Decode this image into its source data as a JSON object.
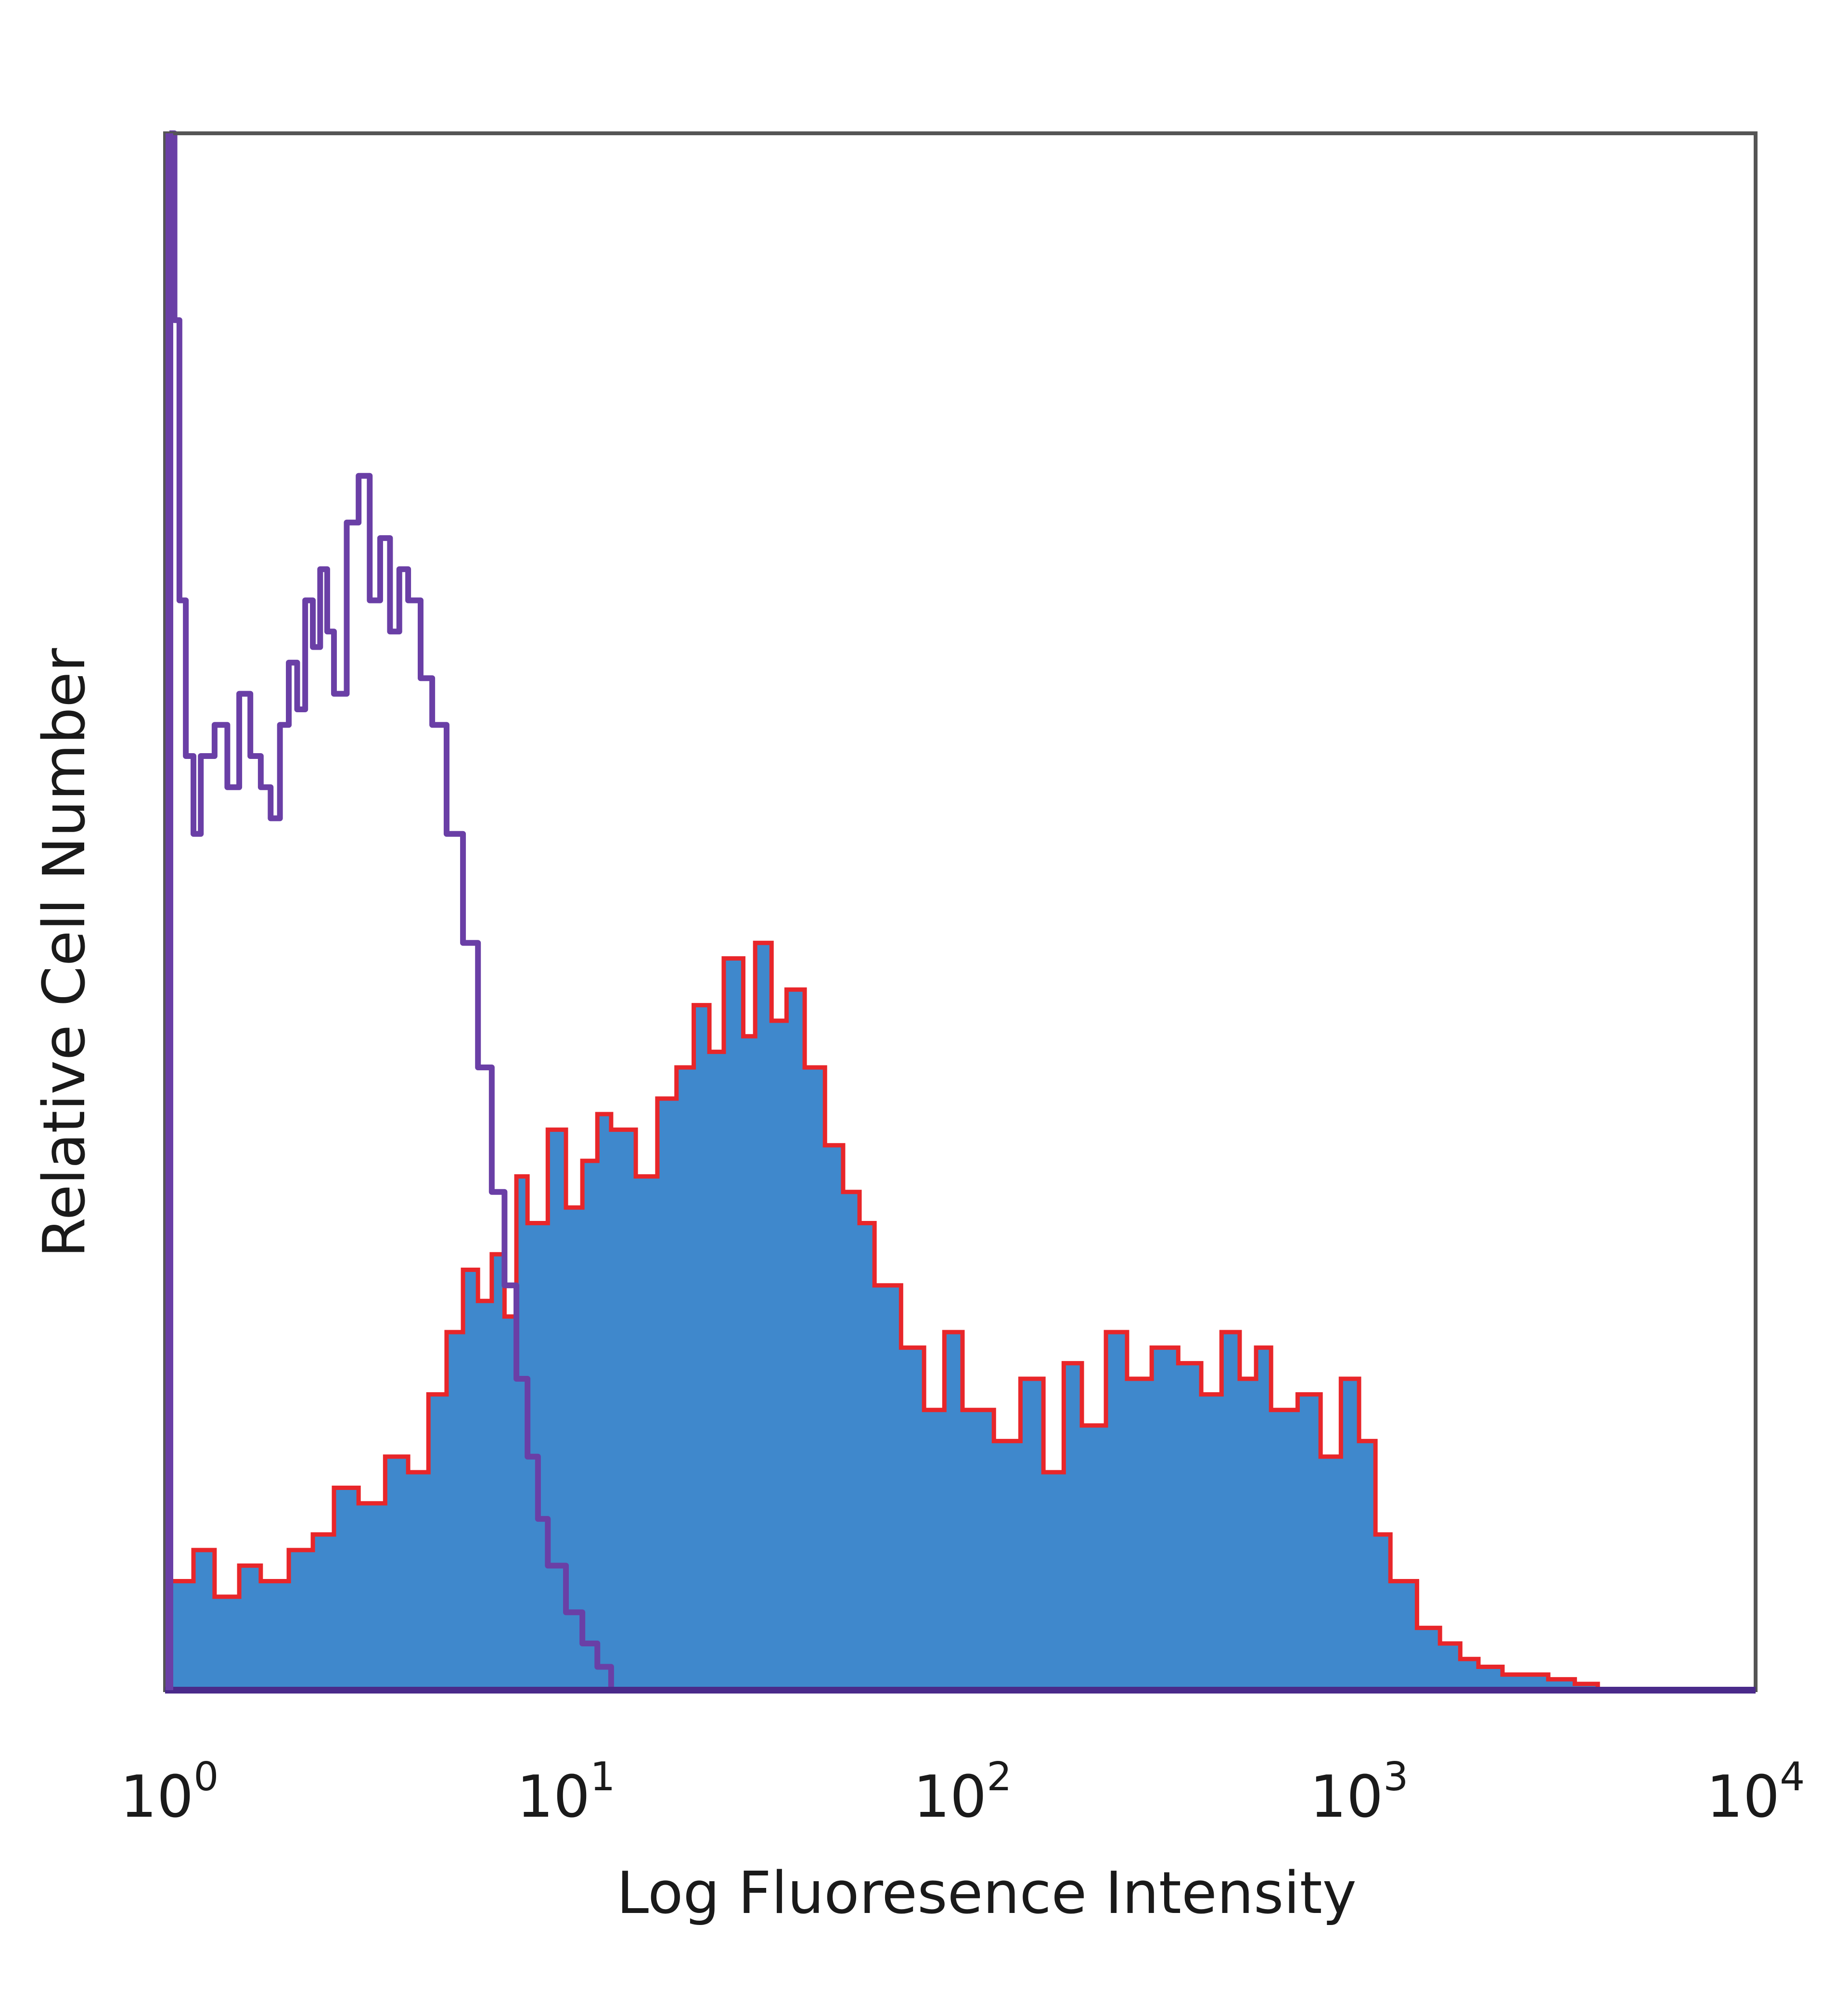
{
  "chart_data": {
    "type": "area",
    "title": "",
    "xlabel": "Log Fluoresence Intensity",
    "ylabel": "Relative Cell Number",
    "x_scale": "log",
    "xlim": [
      1,
      10000
    ],
    "ylim": [
      0,
      100
    ],
    "y_ticks_shown": false,
    "grid": false,
    "legend": "none",
    "x_ticks": [
      {
        "value": 1,
        "base": "10",
        "exp": "0"
      },
      {
        "value": 10,
        "base": "10",
        "exp": "1"
      },
      {
        "value": 100,
        "base": "10",
        "exp": "2"
      },
      {
        "value": 1000,
        "base": "10",
        "exp": "3"
      },
      {
        "value": 10000,
        "base": "10",
        "exp": "4"
      }
    ],
    "colors": {
      "filled_histogram_fill": "#3f88cc",
      "filled_histogram_outline": "#e8262a",
      "open_histogram_line": "#6a3fa6",
      "frame": "#555555",
      "baseline": "#4a2a8a"
    },
    "series": [
      {
        "style": "filled",
        "note_color": "blue fill with red outline",
        "x": [
          1.0,
          1.15,
          1.3,
          1.5,
          1.7,
          2.0,
          2.3,
          2.6,
          3.0,
          3.5,
          4.0,
          4.5,
          5.0,
          5.5,
          6.0,
          6.5,
          7.0,
          7.5,
          8.0,
          9.0,
          10.0,
          11.0,
          12.0,
          13.0,
          15.0,
          17.0,
          19.0,
          21.0,
          23.0,
          25.0,
          28.0,
          30.0,
          33.0,
          36.0,
          40.0,
          45.0,
          50.0,
          55.0,
          60.0,
          70.0,
          80.0,
          90.0,
          100.0,
          120.0,
          140.0,
          160.0,
          180.0,
          200.0,
          230.0,
          260.0,
          300.0,
          350.0,
          400.0,
          450.0,
          500.0,
          550.0,
          600.0,
          700.0,
          800.0,
          900.0,
          1000.0,
          1100.0,
          1200.0,
          1400.0,
          1600.0,
          1800.0,
          2000.0,
          2300.0,
          2600.0,
          3000.0,
          3500.0,
          4000.0
        ],
        "y": [
          7,
          9,
          6,
          8,
          7,
          9,
          10,
          13,
          12,
          15,
          14,
          19,
          23,
          27,
          25,
          28,
          24,
          33,
          30,
          36,
          31,
          34,
          37,
          36,
          33,
          38,
          40,
          44,
          41,
          47,
          42,
          48,
          43,
          45,
          40,
          35,
          32,
          30,
          26,
          22,
          18,
          23,
          18,
          16,
          20,
          14,
          21,
          17,
          23,
          20,
          22,
          21,
          19,
          23,
          20,
          22,
          18,
          19,
          15,
          20,
          16,
          10,
          7,
          4,
          3,
          2,
          1.5,
          1,
          1,
          0.7,
          0.4,
          0
        ]
      },
      {
        "style": "open",
        "note_color": "purple line",
        "x": [
          1.0,
          1.03,
          1.06,
          1.1,
          1.15,
          1.2,
          1.3,
          1.4,
          1.5,
          1.6,
          1.7,
          1.8,
          1.9,
          2.0,
          2.1,
          2.2,
          2.3,
          2.4,
          2.5,
          2.6,
          2.8,
          3.0,
          3.2,
          3.4,
          3.6,
          3.8,
          4.0,
          4.3,
          4.6,
          5.0,
          5.5,
          6.0,
          6.5,
          7.0,
          7.5,
          8.0,
          8.5,
          9.0,
          10.0,
          11.0,
          12.0,
          13.0
        ],
        "y": [
          100,
          88,
          70,
          60,
          55,
          60,
          62,
          58,
          64,
          60,
          58,
          56,
          62,
          66,
          63,
          70,
          67,
          72,
          68,
          64,
          75,
          78,
          70,
          74,
          68,
          72,
          70,
          65,
          62,
          55,
          48,
          40,
          32,
          26,
          20,
          15,
          11,
          8,
          5,
          3,
          1.5,
          0
        ]
      }
    ]
  }
}
